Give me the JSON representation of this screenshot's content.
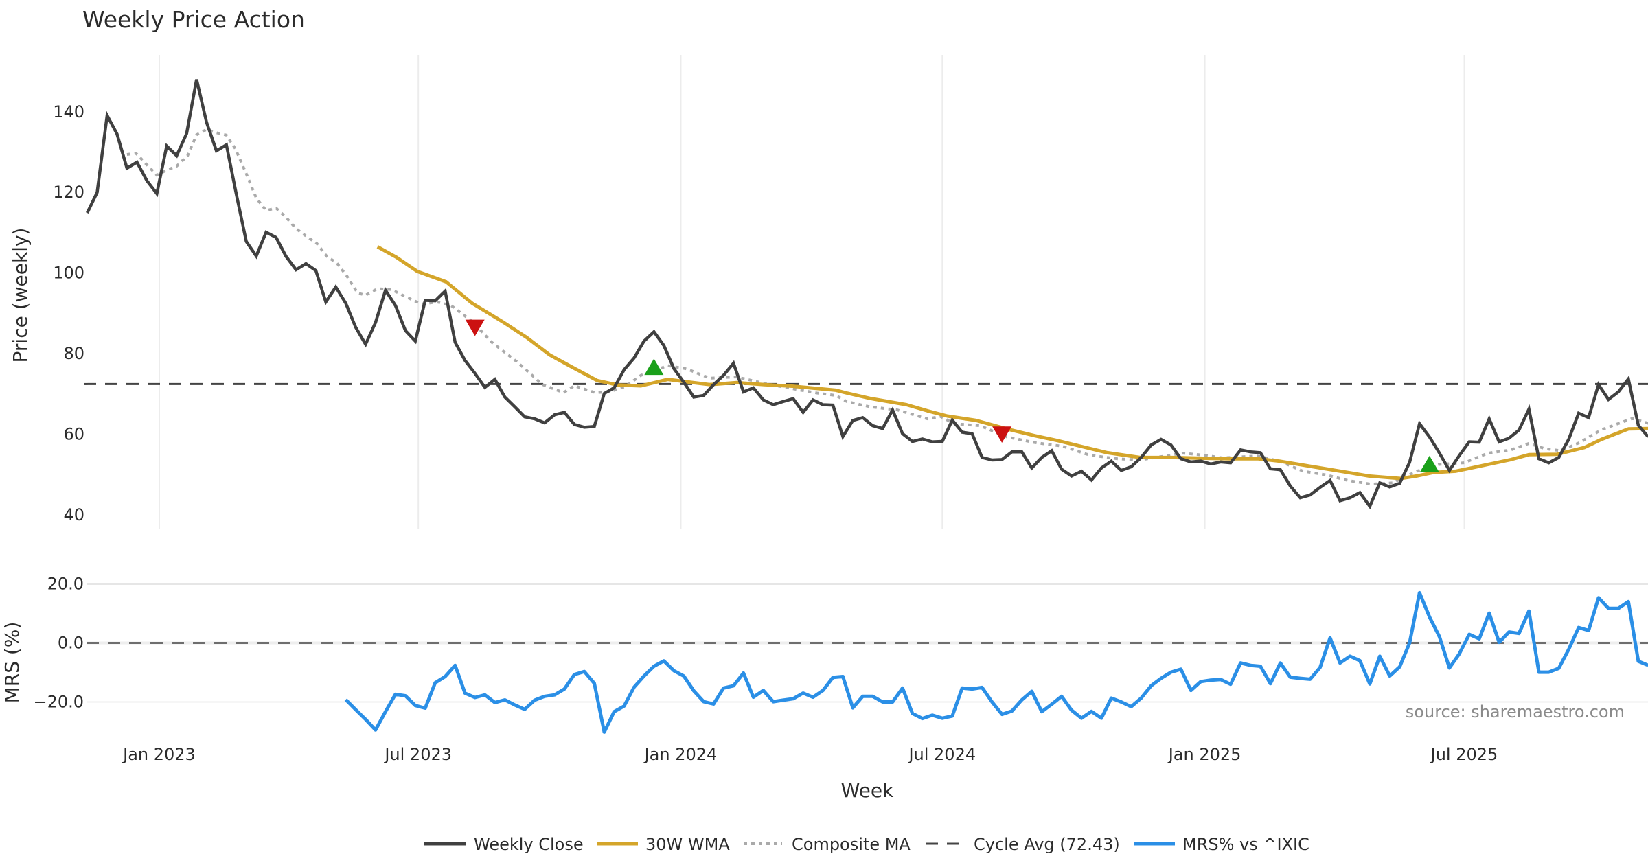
{
  "chart_data": [
    {
      "type": "line",
      "panel": "price",
      "title": "Weekly Price Action",
      "xlabel": "Week",
      "ylabel": "Price (weekly)",
      "ylim": [
        37,
        152
      ],
      "yticks": [
        40,
        60,
        80,
        100,
        120,
        140
      ],
      "x_unit": "week index",
      "xlim": [
        0,
        157
      ],
      "xticks": [
        {
          "label": "Jan 2023",
          "week": 7.25
        },
        {
          "label": "Jul 2023",
          "week": 33.3
        },
        {
          "label": "Jan 2024",
          "week": 59.7
        },
        {
          "label": "Jul 2024",
          "week": 86.0
        },
        {
          "label": "Jan 2025",
          "week": 112.4
        },
        {
          "label": "Jul 2025",
          "week": 138.5
        }
      ],
      "grid": "vertical",
      "series": [
        {
          "name": "Weekly Close",
          "color": "#404040",
          "start_week": 0,
          "values": [
            114.9,
            120.0,
            139.1,
            134.5,
            126.0,
            127.5,
            122.9,
            119.7,
            131.5,
            129.1,
            134.6,
            148.0,
            137.4,
            130.3,
            131.8,
            119.5,
            107.8,
            104.2,
            110.1,
            108.8,
            104.1,
            100.8,
            102.3,
            100.6,
            92.8,
            96.5,
            92.5,
            86.5,
            82.3,
            87.7,
            95.7,
            91.9,
            85.7,
            83.1,
            93.2,
            93.1,
            95.5,
            82.8,
            78.3,
            75.1,
            71.6,
            73.6,
            69.2,
            66.8,
            64.3,
            63.8,
            62.8,
            64.8,
            65.4,
            62.4,
            61.7,
            61.9,
            70.1,
            71.5,
            76.0,
            78.9,
            83.1,
            85.4,
            82.0,
            76.3,
            72.9,
            69.2,
            69.6,
            72.3,
            74.6,
            77.6,
            70.5,
            71.5,
            68.5,
            67.3,
            68.1,
            68.8,
            65.4,
            68.5,
            67.3,
            67.2,
            59.4,
            63.4,
            64.1,
            62.1,
            61.4,
            66.0,
            60.1,
            58.2,
            58.8,
            58.1,
            58.2,
            63.5,
            60.5,
            60.1,
            54.2,
            53.6,
            53.7,
            55.6,
            55.6,
            51.6,
            54.2,
            55.9,
            51.3,
            49.6,
            50.8,
            48.6,
            51.6,
            53.3,
            51.0,
            51.9,
            54.2,
            57.3,
            58.7,
            57.3,
            53.9,
            53.1,
            53.3,
            52.6,
            53.1,
            52.9,
            56.1,
            55.6,
            55.4,
            51.4,
            51.2,
            47.1,
            44.2,
            44.9,
            46.8,
            48.5,
            43.5,
            44.2,
            45.5,
            42.1,
            47.9,
            46.9,
            47.8,
            53.0,
            62.6,
            59.3,
            55.3,
            51.0,
            54.7,
            58.1,
            58.0,
            63.8,
            58.1,
            59.0,
            61.0,
            66.2,
            53.9,
            52.9,
            54.2,
            58.7,
            65.2,
            64.1,
            72.3,
            68.6,
            70.5,
            73.7,
            62.2,
            59.3
          ]
        },
        {
          "name": "30W WMA",
          "color": "#d4a52a",
          "points": [
            [
              29.2,
              106.5
            ],
            [
              31.1,
              103.9
            ],
            [
              33.2,
              100.4
            ],
            [
              36.1,
              97.8
            ],
            [
              38.7,
              92.5
            ],
            [
              41.9,
              87.7
            ],
            [
              44.2,
              84.0
            ],
            [
              46.5,
              79.7
            ],
            [
              48.8,
              76.6
            ],
            [
              51.3,
              73.3
            ],
            [
              53.4,
              72.2
            ],
            [
              55.7,
              72.0
            ],
            [
              58.4,
              73.6
            ],
            [
              60.3,
              73.0
            ],
            [
              62.6,
              72.3
            ],
            [
              65.3,
              72.8
            ],
            [
              68.1,
              72.3
            ],
            [
              70.9,
              71.9
            ],
            [
              75.3,
              70.9
            ],
            [
              76.4,
              70.2
            ],
            [
              78.7,
              68.9
            ],
            [
              82.4,
              67.3
            ],
            [
              84.5,
              65.8
            ],
            [
              86.5,
              64.5
            ],
            [
              89.4,
              63.4
            ],
            [
              92.5,
              61.3
            ],
            [
              95.3,
              59.6
            ],
            [
              97.6,
              58.4
            ],
            [
              99.9,
              57.0
            ],
            [
              102.6,
              55.4
            ],
            [
              105.9,
              54.2
            ],
            [
              109.1,
              54.2
            ],
            [
              112.6,
              54.0
            ],
            [
              114.9,
              53.9
            ],
            [
              117.7,
              53.9
            ],
            [
              119.9,
              53.3
            ],
            [
              123.3,
              51.9
            ],
            [
              126.8,
              50.5
            ],
            [
              128.9,
              49.6
            ],
            [
              132.1,
              49.0
            ],
            [
              133.7,
              49.6
            ],
            [
              135.4,
              50.5
            ],
            [
              137.6,
              50.8
            ],
            [
              139.2,
              51.6
            ],
            [
              140.9,
              52.5
            ],
            [
              143.2,
              53.7
            ],
            [
              145.0,
              54.9
            ],
            [
              147.8,
              55.0
            ],
            [
              150.6,
              56.7
            ],
            [
              152.3,
              58.7
            ],
            [
              155.0,
              61.3
            ],
            [
              157.0,
              61.4
            ]
          ]
        },
        {
          "name": "Composite MA",
          "color": "#aaaaaa",
          "points": [
            [
              4.0,
              129.4
            ],
            [
              4.9,
              129.7
            ],
            [
              5.9,
              127.1
            ],
            [
              7.0,
              124.3
            ],
            [
              8.0,
              125.5
            ],
            [
              9.0,
              126.5
            ],
            [
              10.1,
              129.1
            ],
            [
              11.0,
              134.3
            ],
            [
              12.0,
              135.6
            ],
            [
              13.0,
              134.8
            ],
            [
              14.0,
              134.2
            ],
            [
              14.9,
              130.8
            ],
            [
              16.0,
              124.6
            ],
            [
              17.0,
              118.6
            ],
            [
              18.0,
              115.5
            ],
            [
              19.0,
              116.1
            ],
            [
              20.0,
              113.8
            ],
            [
              21.0,
              111.0
            ],
            [
              22.1,
              109.0
            ],
            [
              23.1,
              107.3
            ],
            [
              24.1,
              104.1
            ],
            [
              25.1,
              102.5
            ],
            [
              26.1,
              99.3
            ],
            [
              27.2,
              95.0
            ],
            [
              28.0,
              94.5
            ],
            [
              29.2,
              96.1
            ],
            [
              30.6,
              95.9
            ],
            [
              32.2,
              93.9
            ],
            [
              33.6,
              92.3
            ],
            [
              35.2,
              92.8
            ],
            [
              36.6,
              91.9
            ],
            [
              38.7,
              88.0
            ],
            [
              40.7,
              82.8
            ],
            [
              43.2,
              78.0
            ],
            [
              45.8,
              72.3
            ],
            [
              47.9,
              70.3
            ],
            [
              49.0,
              72.0
            ],
            [
              51.1,
              70.3
            ],
            [
              52.5,
              70.5
            ],
            [
              54.1,
              71.8
            ],
            [
              55.7,
              74.6
            ],
            [
              58.4,
              77.0
            ],
            [
              60.3,
              76.2
            ],
            [
              62.6,
              73.9
            ],
            [
              65.3,
              74.2
            ],
            [
              68.1,
              72.6
            ],
            [
              70.9,
              71.3
            ],
            [
              73.4,
              70.2
            ],
            [
              75.3,
              69.6
            ],
            [
              76.4,
              68.1
            ],
            [
              78.7,
              66.8
            ],
            [
              81.5,
              66.0
            ],
            [
              84.5,
              63.8
            ],
            [
              85.8,
              64.4
            ],
            [
              87.2,
              62.6
            ],
            [
              89.8,
              62.1
            ],
            [
              92.5,
              59.3
            ],
            [
              95.3,
              57.9
            ],
            [
              98.1,
              57.0
            ],
            [
              100.8,
              54.8
            ],
            [
              103.6,
              53.9
            ],
            [
              105.9,
              53.6
            ],
            [
              107.9,
              54.4
            ],
            [
              110.2,
              55.3
            ],
            [
              112.6,
              54.7
            ],
            [
              114.2,
              54.1
            ],
            [
              117.7,
              54.6
            ],
            [
              119.9,
              53.3
            ],
            [
              122.3,
              50.8
            ],
            [
              124.6,
              49.9
            ],
            [
              126.8,
              48.5
            ],
            [
              129.1,
              47.6
            ],
            [
              131.3,
              47.9
            ],
            [
              133.7,
              50.8
            ],
            [
              136.0,
              52.5
            ],
            [
              138.5,
              52.9
            ],
            [
              140.9,
              55.3
            ],
            [
              143.2,
              56.1
            ],
            [
              145.0,
              57.7
            ],
            [
              146.6,
              56.4
            ],
            [
              148.2,
              55.9
            ],
            [
              150.1,
              57.9
            ],
            [
              152.3,
              61.1
            ],
            [
              155.4,
              63.9
            ],
            [
              157.0,
              62.7
            ]
          ]
        },
        {
          "name": "Cycle Avg (72.43)",
          "color": "#444444",
          "value": 72.43
        }
      ],
      "markers": [
        {
          "type": "sell",
          "shape": "triangle-down",
          "color": "#cc1111",
          "week": 39,
          "value": 86.5
        },
        {
          "type": "buy",
          "shape": "triangle-up",
          "color": "#1aa01a",
          "week": 57,
          "value": 76.6
        },
        {
          "type": "sell",
          "shape": "triangle-down",
          "color": "#cc1111",
          "week": 92,
          "value": 60.0
        },
        {
          "type": "buy",
          "shape": "triangle-up",
          "color": "#1aa01a",
          "week": 135,
          "value": 52.5
        }
      ]
    },
    {
      "type": "line",
      "panel": "mrs",
      "ylabel": "MRS (%)",
      "ylim": [
        -33,
        22
      ],
      "yticks": [
        {
          "value": 20,
          "label": "20.0"
        },
        {
          "value": 0,
          "label": "0.0"
        },
        {
          "value": -20,
          "label": "−20.0"
        }
      ],
      "xlim": [
        0,
        157
      ],
      "series": [
        {
          "name": "MRS% vs ^IXIC",
          "color": "#2b8fe6",
          "start_week": 26,
          "values": [
            -19.2,
            -22.6,
            -25.9,
            -29.5,
            -23.3,
            -17.4,
            -17.9,
            -21.2,
            -22.1,
            -13.5,
            -11.4,
            -7.6,
            -17.0,
            -18.5,
            -17.6,
            -20.2,
            -19.3,
            -21.0,
            -22.5,
            -19.4,
            -18.1,
            -17.6,
            -15.6,
            -10.7,
            -9.7,
            -13.7,
            -30.2,
            -23.3,
            -21.4,
            -15.0,
            -11.2,
            -7.9,
            -6.1,
            -9.4,
            -11.2,
            -16.2,
            -19.9,
            -20.7,
            -15.3,
            -14.5,
            -10.2,
            -18.4,
            -16.1,
            -19.9,
            -19.4,
            -18.9,
            -17.0,
            -18.4,
            -16.1,
            -11.7,
            -11.4,
            -22.0,
            -18.1,
            -18.1,
            -20.0,
            -20.0,
            -15.3,
            -23.9,
            -25.6,
            -24.5,
            -25.5,
            -24.8,
            -15.3,
            -15.6,
            -15.1,
            -20.0,
            -24.2,
            -23.1,
            -19.3,
            -16.4,
            -23.3,
            -20.8,
            -18.1,
            -22.8,
            -25.5,
            -23.2,
            -25.5,
            -18.7,
            -20.0,
            -21.6,
            -18.7,
            -14.5,
            -12.0,
            -9.9,
            -8.9,
            -16.1,
            -13.1,
            -12.6,
            -12.4,
            -14.0,
            -6.8,
            -7.6,
            -7.9,
            -13.8,
            -6.8,
            -11.6,
            -12.0,
            -12.3,
            -8.3,
            1.7,
            -6.8,
            -4.5,
            -6.0,
            -13.9,
            -4.5,
            -11.2,
            -8.1,
            0.0,
            17.0,
            8.8,
            2.1,
            -8.5,
            -3.7,
            2.9,
            1.4,
            10.1,
            0.2,
            3.7,
            3.2,
            10.8,
            -9.9,
            -9.9,
            -8.6,
            -2.2,
            5.2,
            4.2,
            15.3,
            11.7,
            11.7,
            14.0,
            -6.2,
            -7.6
          ]
        },
        {
          "name": "zero-line",
          "value": 0
        }
      ],
      "annotation": "source: sharemaestro.com"
    }
  ],
  "legend": {
    "placement": "bottom-center",
    "items": [
      {
        "label": "Weekly Close",
        "style": "solid",
        "color": "#404040"
      },
      {
        "label": "30W WMA",
        "style": "solid",
        "color": "#d4a52a"
      },
      {
        "label": "Composite MA",
        "style": "dotted",
        "color": "#aaaaaa"
      },
      {
        "label": "Cycle Avg (72.43)",
        "style": "dashed",
        "color": "#444444"
      },
      {
        "label": "MRS% vs ^IXIC",
        "style": "solid",
        "color": "#2b8fe6"
      }
    ]
  }
}
